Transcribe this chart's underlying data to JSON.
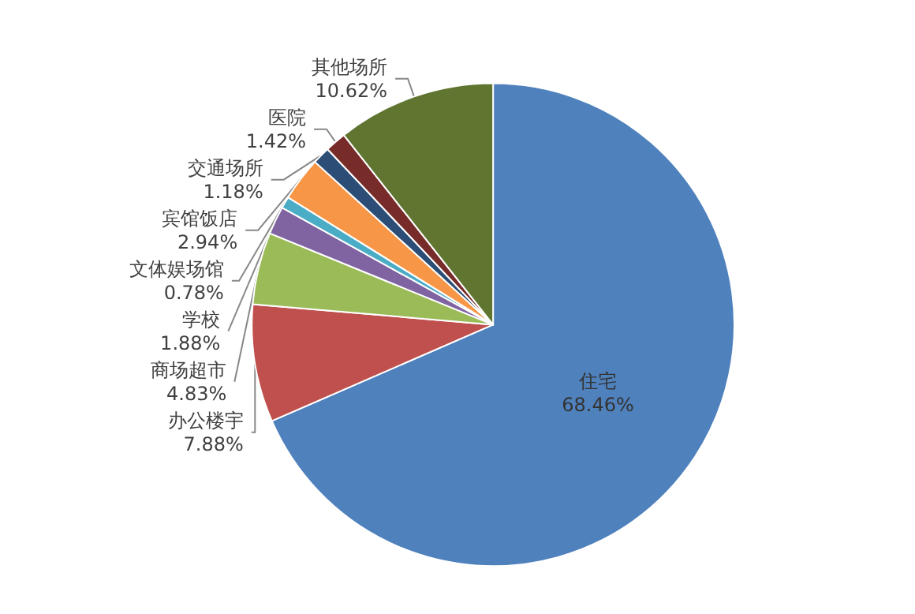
{
  "chart_data": {
    "type": "pie",
    "categories": [
      "住宅",
      "办公楼宇",
      "商场超市",
      "学校",
      "文体娱场馆",
      "宾馆饭店",
      "交通场所",
      "医院",
      "其他场所"
    ],
    "values": [
      68.46,
      7.88,
      4.83,
      1.88,
      0.78,
      2.94,
      1.18,
      1.42,
      10.62
    ],
    "value_labels": [
      "68.46%",
      "7.88%",
      "4.83%",
      "1.88%",
      "0.78%",
      "2.94%",
      "1.18%",
      "1.42%",
      "10.62%"
    ],
    "colors": [
      "#4f81bd",
      "#c0504d",
      "#9bbb59",
      "#8064a2",
      "#4bacc6",
      "#f79646",
      "#2c4d75",
      "#772c2a",
      "#5f7530"
    ],
    "legend": false
  }
}
